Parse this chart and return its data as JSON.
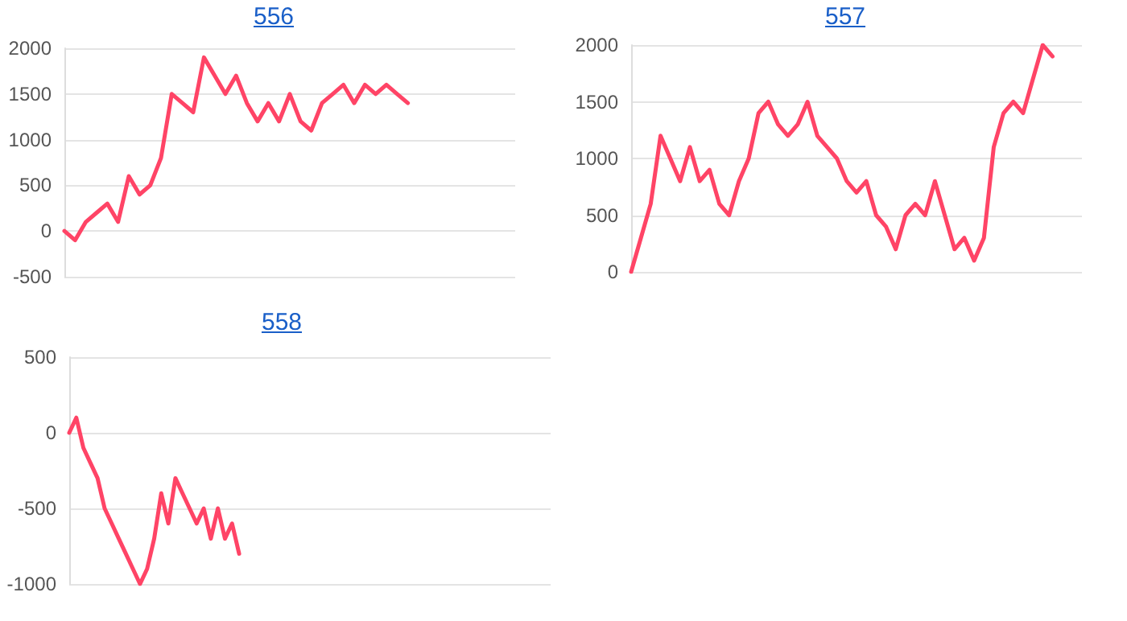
{
  "chart_data": [
    {
      "type": "line",
      "title": "556",
      "categories": [
        null,
        null,
        null,
        null,
        null,
        null,
        null,
        null,
        null,
        null,
        null,
        null,
        null,
        null,
        null,
        null,
        null,
        null,
        null,
        null,
        null,
        null,
        null,
        null,
        null,
        null,
        null,
        null,
        null,
        null,
        null,
        null,
        null,
        null,
        null,
        null,
        null,
        null,
        null,
        null,
        null,
        null,
        null
      ],
      "series": [
        {
          "color": "#ff4466",
          "values": [
            0,
            -100,
            100,
            200,
            300,
            100,
            600,
            400,
            500,
            800,
            1500,
            1400,
            1300,
            1900,
            1700,
            1500,
            1700,
            1400,
            1200,
            1400,
            1200,
            1500,
            1200,
            1100,
            1400,
            1500,
            1600,
            1400,
            1600,
            1500,
            1600,
            1500,
            1400,
            null,
            null,
            null,
            null,
            null,
            null,
            null,
            null,
            null,
            null
          ]
        }
      ],
      "ylim": [
        -500,
        2000
      ],
      "yticks": [
        -500,
        0,
        500,
        1000,
        1500,
        2000
      ],
      "grid": "y",
      "line_style": "solid",
      "tick_labels": "y"
    },
    {
      "type": "line",
      "title": "557",
      "categories": [
        null,
        null,
        null,
        null,
        null,
        null,
        null,
        null,
        null,
        null,
        null,
        null,
        null,
        null,
        null,
        null,
        null,
        null,
        null,
        null,
        null,
        null,
        null,
        null,
        null,
        null,
        null,
        null,
        null,
        null,
        null,
        null,
        null,
        null,
        null,
        null,
        null,
        null,
        null,
        null,
        null,
        null,
        null,
        null,
        null,
        null,
        null
      ],
      "series": [
        {
          "color": "#ff4466",
          "values": [
            0,
            300,
            600,
            1200,
            1000,
            800,
            1100,
            800,
            900,
            600,
            500,
            800,
            1000,
            1400,
            1500,
            1300,
            1200,
            1300,
            1500,
            1200,
            1100,
            1000,
            800,
            700,
            800,
            500,
            400,
            200,
            500,
            600,
            500,
            800,
            500,
            200,
            300,
            100,
            300,
            1100,
            1400,
            1500,
            1400,
            1700,
            2000,
            1900,
            null,
            null,
            null
          ]
        }
      ],
      "ylim": [
        0,
        2000
      ],
      "yticks": [
        0,
        500,
        1000,
        1500,
        2000
      ],
      "grid": "y",
      "line_style": "solid",
      "tick_labels": "y"
    },
    {
      "type": "line",
      "title": "558",
      "categories": [
        null,
        null,
        null,
        null,
        null,
        null,
        null,
        null,
        null,
        null,
        null,
        null,
        null,
        null,
        null,
        null,
        null,
        null,
        null,
        null,
        null,
        null,
        null,
        null,
        null,
        null,
        null,
        null,
        null,
        null,
        null,
        null,
        null,
        null,
        null,
        null,
        null,
        null,
        null,
        null,
        null,
        null,
        null,
        null,
        null,
        null,
        null,
        null,
        null,
        null,
        null,
        null,
        null,
        null,
        null,
        null,
        null,
        null,
        null,
        null,
        null,
        null,
        null,
        null,
        null,
        null,
        null,
        null,
        null
      ],
      "series": [
        {
          "color": "#ff4466",
          "values": [
            0,
            100,
            -100,
            -200,
            -300,
            -500,
            -600,
            -700,
            -800,
            -900,
            -1000,
            -900,
            -700,
            -400,
            -600,
            -300,
            -400,
            -500,
            -600,
            -500,
            -700,
            -500,
            -700,
            -600,
            -800,
            null,
            null,
            null,
            null,
            null,
            null,
            null,
            null,
            null,
            null,
            null,
            null,
            null,
            null,
            null,
            null,
            null,
            null,
            null,
            null,
            null,
            null,
            null,
            null,
            null,
            null,
            null,
            null,
            null,
            null,
            null,
            null,
            null,
            null,
            null,
            null,
            null,
            null,
            null,
            null,
            null,
            null,
            null,
            null
          ]
        }
      ],
      "ylim": [
        -1000,
        500
      ],
      "yticks": [
        -1000,
        -500,
        0,
        500
      ],
      "grid": "y",
      "line_style": "solid",
      "tick_labels": "y"
    }
  ]
}
